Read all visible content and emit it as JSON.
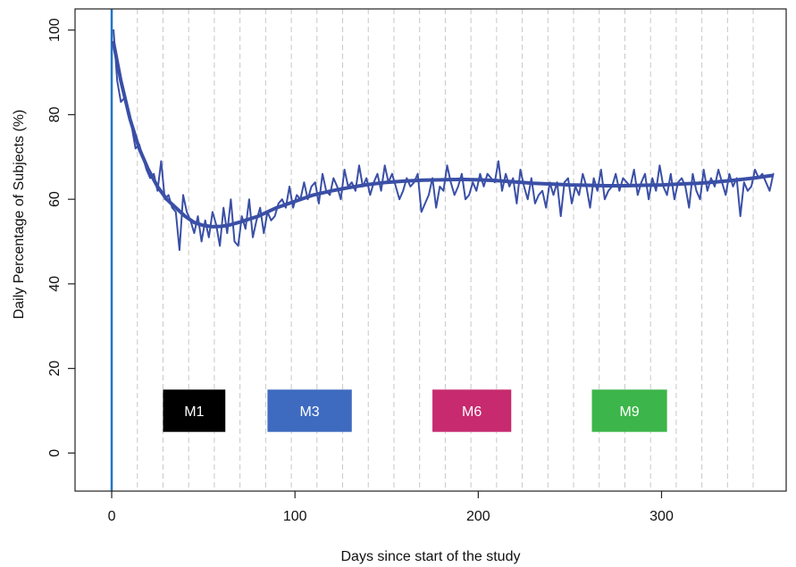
{
  "chart_data": {
    "type": "line",
    "title": "",
    "xlabel": "Days since start of the study",
    "ylabel": "Daily Percentage of Subjects (%)",
    "xlim": [
      -20,
      368
    ],
    "ylim": [
      -9,
      105
    ],
    "x_ticks": [
      0,
      100,
      200,
      300
    ],
    "y_ticks": [
      0,
      20,
      40,
      60,
      80,
      100
    ],
    "x_tick_labels": [
      "0",
      "100",
      "200",
      "300"
    ],
    "y_tick_labels": [
      "0",
      "20",
      "40",
      "60",
      "80",
      "100"
    ],
    "grid_x": [
      14,
      28,
      42,
      56,
      70,
      84,
      98,
      112,
      126,
      140,
      154,
      168,
      182,
      196,
      210,
      224,
      238,
      252,
      266,
      280,
      294,
      308,
      322,
      336,
      350
    ],
    "reference_line": {
      "x": 0,
      "color": "#1f77c4"
    },
    "series": [
      {
        "kind": "daily",
        "color": "#3a4fa6",
        "x": [
          1,
          3,
          5,
          7,
          9,
          11,
          13,
          15,
          17,
          19,
          21,
          23,
          25,
          27,
          29,
          31,
          33,
          35,
          37,
          39,
          41,
          43,
          45,
          47,
          49,
          51,
          53,
          55,
          57,
          59,
          61,
          63,
          65,
          67,
          69,
          71,
          73,
          75,
          77,
          79,
          81,
          83,
          85,
          87,
          89,
          91,
          93,
          95,
          97,
          99,
          101,
          103,
          105,
          107,
          109,
          111,
          113,
          115,
          117,
          119,
          121,
          123,
          125,
          127,
          129,
          131,
          133,
          135,
          137,
          139,
          141,
          143,
          145,
          147,
          149,
          151,
          153,
          155,
          157,
          159,
          161,
          163,
          165,
          167,
          169,
          171,
          173,
          175,
          177,
          179,
          181,
          183,
          185,
          187,
          189,
          191,
          193,
          195,
          197,
          199,
          201,
          203,
          205,
          207,
          209,
          211,
          213,
          215,
          217,
          219,
          221,
          223,
          225,
          227,
          229,
          231,
          233,
          235,
          237,
          239,
          241,
          243,
          245,
          247,
          249,
          251,
          253,
          255,
          257,
          259,
          261,
          263,
          265,
          267,
          269,
          271,
          273,
          275,
          277,
          279,
          281,
          283,
          285,
          287,
          289,
          291,
          293,
          295,
          297,
          299,
          301,
          303,
          305,
          307,
          309,
          311,
          313,
          315,
          317,
          319,
          321,
          323,
          325,
          327,
          329,
          331,
          333,
          335,
          337,
          339,
          341,
          343,
          345,
          347,
          349,
          351,
          353,
          355,
          357,
          359,
          361
        ],
        "y": [
          100,
          88,
          83,
          84,
          80,
          77,
          72,
          73,
          70,
          67,
          65,
          66,
          62,
          69,
          60,
          61,
          58,
          57,
          48,
          61,
          57,
          55,
          52,
          56,
          50,
          55,
          51,
          57,
          54,
          49,
          58,
          52,
          60,
          50,
          49,
          56,
          53,
          60,
          51,
          55,
          58,
          52,
          57,
          55,
          56,
          59,
          60,
          58,
          63,
          58,
          61,
          60,
          64,
          60,
          63,
          64,
          59,
          66,
          62,
          61,
          65,
          63,
          60,
          67,
          63,
          64,
          62,
          68,
          63,
          65,
          61,
          64,
          66,
          62,
          68,
          64,
          66,
          63,
          60,
          62,
          65,
          63,
          64,
          66,
          57,
          59,
          61,
          65,
          58,
          63,
          62,
          68,
          64,
          61,
          63,
          66,
          60,
          61,
          64,
          62,
          66,
          63,
          66,
          65,
          64,
          69,
          62,
          66,
          63,
          65,
          59,
          67,
          63,
          60,
          65,
          59,
          61,
          62,
          58,
          64,
          61,
          64,
          56,
          64,
          65,
          59,
          63,
          61,
          66,
          63,
          58,
          65,
          62,
          67,
          60,
          62,
          63,
          66,
          62,
          65,
          64,
          63,
          67,
          61,
          64,
          66,
          60,
          65,
          62,
          68,
          63,
          61,
          66,
          60,
          64,
          65,
          63,
          58,
          66,
          62,
          60,
          67,
          62,
          65,
          63,
          67,
          64,
          61,
          66,
          63,
          65,
          56,
          64,
          62,
          63,
          67,
          65,
          66,
          64,
          62,
          66
        ],
        "legend": ""
      },
      {
        "kind": "smoothed",
        "color": "#3a4fa6",
        "x": [
          1,
          5,
          10,
          15,
          20,
          25,
          30,
          35,
          40,
          45,
          50,
          55,
          60,
          65,
          70,
          80,
          90,
          100,
          110,
          120,
          130,
          140,
          150,
          160,
          170,
          180,
          190,
          200,
          210,
          220,
          230,
          240,
          250,
          260,
          270,
          280,
          290,
          300,
          310,
          320,
          330,
          340,
          350,
          360
        ],
        "y": [
          97,
          88,
          79,
          72,
          67,
          63,
          60,
          58,
          56,
          54.5,
          53.8,
          53.5,
          53.6,
          54,
          54.6,
          56,
          58,
          59.5,
          61,
          62,
          62.8,
          63.5,
          64,
          64.3,
          64.5,
          64.6,
          64.7,
          64.6,
          64.4,
          64.1,
          63.8,
          63.6,
          63.4,
          63.3,
          63.2,
          63.2,
          63.3,
          63.4,
          63.6,
          63.8,
          64.1,
          64.5,
          65,
          65.6
        ],
        "legend": ""
      }
    ],
    "annotations": [
      {
        "label": "M1",
        "x_start": 28,
        "x_end": 62,
        "y_low": 5,
        "y_high": 15,
        "color": "#000000"
      },
      {
        "label": "M3",
        "x_start": 85,
        "x_end": 131,
        "y_low": 5,
        "y_high": 15,
        "color": "#3e6bbf"
      },
      {
        "label": "M6",
        "x_start": 175,
        "x_end": 218,
        "y_low": 5,
        "y_high": 15,
        "color": "#c72a6e"
      },
      {
        "label": "M9",
        "x_start": 262,
        "x_end": 303,
        "y_low": 5,
        "y_high": 15,
        "color": "#3cb54a"
      }
    ]
  }
}
